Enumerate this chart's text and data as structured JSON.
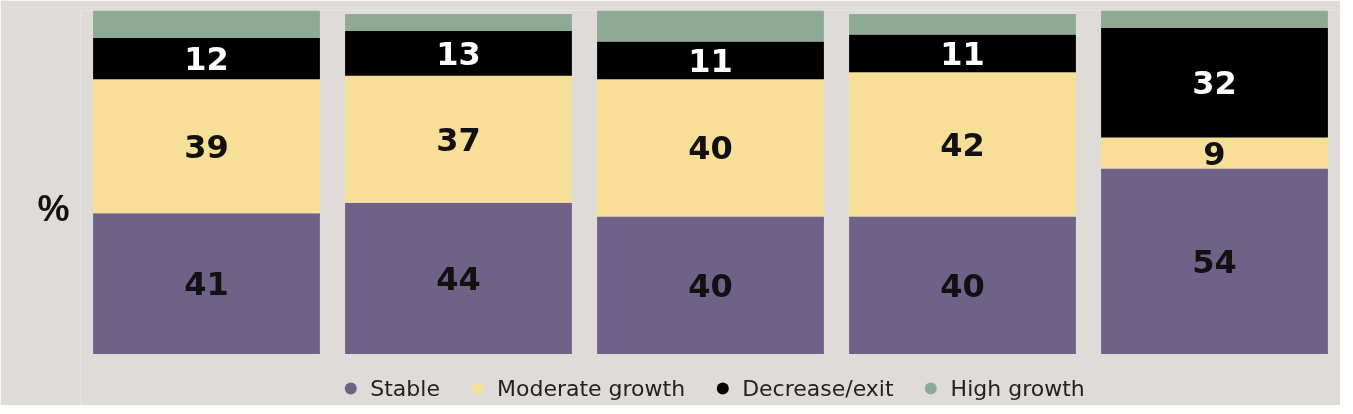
{
  "chart_data": {
    "type": "bar",
    "stacked": true,
    "ylabel": "%",
    "categories": [
      null,
      null,
      null,
      null,
      null
    ],
    "series": [
      {
        "name": "Stable",
        "color": "#6f6187",
        "values": [
          41,
          44,
          40,
          40,
          54
        ],
        "value_labels": [
          "41",
          "44",
          "40",
          "40",
          "54"
        ]
      },
      {
        "name": "Moderate growth",
        "color": "#f7df98",
        "values": [
          39,
          37,
          40,
          42,
          9
        ],
        "value_labels": [
          "39",
          "37",
          "40",
          "42",
          "9"
        ]
      },
      {
        "name": "Decrease/exit",
        "color": "#000000",
        "values": [
          12,
          13,
          11,
          11,
          32
        ],
        "value_labels": [
          "12",
          "13",
          "11",
          "11",
          "32"
        ]
      },
      {
        "name": "High growth",
        "color": "#8faa92",
        "values": [
          8,
          5,
          9,
          6,
          5
        ]
      }
    ],
    "legend": "bottom"
  }
}
